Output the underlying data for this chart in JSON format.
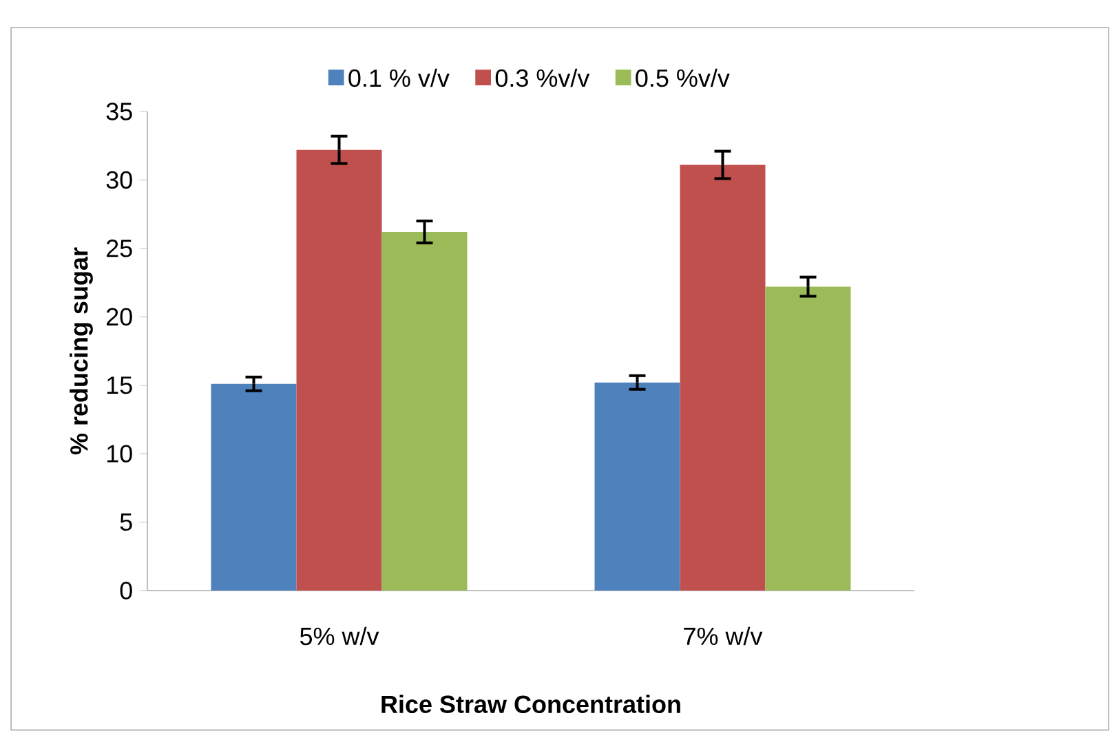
{
  "chart_data": {
    "type": "bar",
    "xlabel": "Rice Straw Concentration",
    "ylabel": "% reducing sugar",
    "categories": [
      "5% w/v",
      "7% w/v"
    ],
    "series": [
      {
        "name": "0.1 % v/v",
        "color": "#4f81bd",
        "values": [
          15.1,
          15.2
        ],
        "errors": [
          0.5,
          0.5
        ]
      },
      {
        "name": "0.3 %v/v",
        "color": "#c0504d",
        "values": [
          32.2,
          31.1
        ],
        "errors": [
          1.0,
          1.0
        ]
      },
      {
        "name": "0.5 %v/v",
        "color": "#9bbb59",
        "values": [
          26.2,
          22.2
        ],
        "errors": [
          0.8,
          0.7
        ]
      }
    ],
    "ylim": [
      0,
      35
    ],
    "yticks": [
      0,
      5,
      10,
      15,
      20,
      25,
      30,
      35
    ],
    "legend": "top",
    "grid": false
  }
}
